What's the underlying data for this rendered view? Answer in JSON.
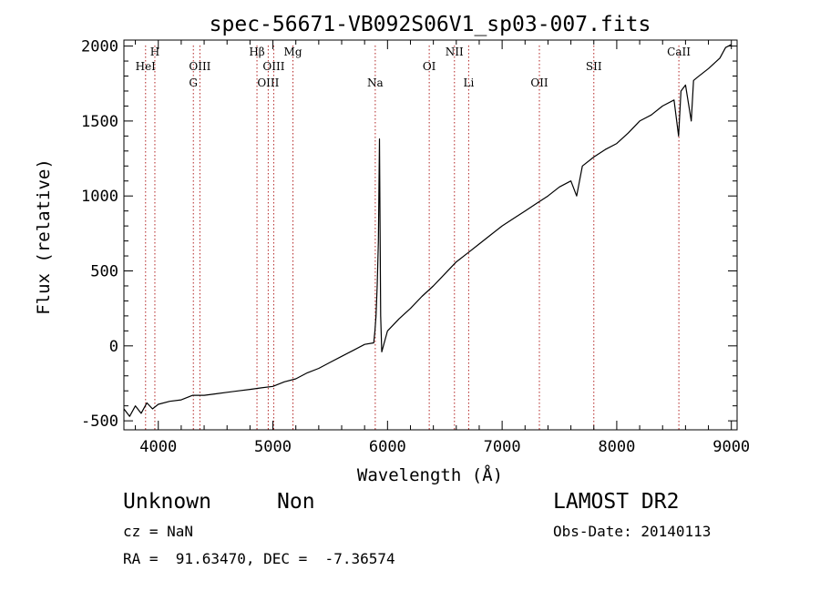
{
  "chart_data": {
    "type": "line",
    "title": "spec-56671-VB092S06V1_sp03-007.fits",
    "xlabel": "Wavelength (Å)",
    "ylabel": "Flux (relative)",
    "xlim": [
      3700,
      9050
    ],
    "ylim": [
      -560,
      2040
    ],
    "xticks": [
      4000,
      5000,
      6000,
      7000,
      8000,
      9000
    ],
    "yticks": [
      -500,
      0,
      500,
      1000,
      1500,
      2000
    ],
    "line_color": "#000000",
    "marker_color": "#b22222",
    "series": [
      {
        "x": [
          3700,
          3750,
          3800,
          3850,
          3900,
          3950,
          4000,
          4100,
          4200,
          4300,
          4400,
          4500,
          4600,
          4700,
          4800,
          4900,
          5000,
          5100,
          5200,
          5300,
          5400,
          5500,
          5600,
          5700,
          5800,
          5880,
          5890,
          5900,
          5910,
          5920,
          5930,
          5940,
          5950,
          6000,
          6100,
          6200,
          6300,
          6400,
          6500,
          6600,
          6700,
          6800,
          6900,
          7000,
          7100,
          7200,
          7300,
          7400,
          7500,
          7600,
          7650,
          7700,
          7800,
          7900,
          8000,
          8100,
          8200,
          8300,
          8400,
          8500,
          8540,
          8560,
          8600,
          8650,
          8670,
          8700,
          8800,
          8900,
          8950,
          9000
        ],
        "y": [
          -420,
          -470,
          -400,
          -450,
          -380,
          -420,
          -390,
          -370,
          -360,
          -330,
          -330,
          -320,
          -310,
          -300,
          -290,
          -280,
          -270,
          -240,
          -220,
          -180,
          -150,
          -110,
          -70,
          -30,
          10,
          20,
          100,
          200,
          400,
          700,
          1380,
          200,
          -40,
          100,
          180,
          250,
          330,
          400,
          480,
          560,
          620,
          680,
          740,
          800,
          850,
          900,
          950,
          1000,
          1060,
          1100,
          1000,
          1200,
          1260,
          1310,
          1350,
          1420,
          1500,
          1540,
          1600,
          1640,
          1400,
          1700,
          1740,
          1500,
          1770,
          1790,
          1850,
          1920,
          1990,
          2010
        ]
      }
    ],
    "lines": [
      {
        "name": "H",
        "x": 3970,
        "row": 1
      },
      {
        "name": "HeI",
        "x": 3889,
        "row": 2
      },
      {
        "name": "OIII",
        "x": 4363,
        "row": 2
      },
      {
        "name": "G",
        "x": 4306,
        "row": 3
      },
      {
        "name": "Hβ",
        "x": 4861,
        "row": 1
      },
      {
        "name": "OIII",
        "x": 5007,
        "row": 2
      },
      {
        "name": "OIII",
        "x": 4959,
        "row": 3
      },
      {
        "name": "Mg",
        "x": 5175,
        "row": 1
      },
      {
        "name": "Na",
        "x": 5893,
        "row": 3
      },
      {
        "name": "OI",
        "x": 6364,
        "row": 2
      },
      {
        "name": "NII",
        "x": 6584,
        "row": 1
      },
      {
        "name": "Li",
        "x": 6708,
        "row": 3
      },
      {
        "name": "OII",
        "x": 7325,
        "row": 3
      },
      {
        "name": "SII",
        "x": 7800,
        "row": 2
      },
      {
        "name": "CaII",
        "x": 8542,
        "row": 1
      }
    ]
  },
  "info": {
    "class": "Unknown",
    "subclass": "Non",
    "survey": "LAMOST DR2",
    "cz": "cz = NaN",
    "obs_date": "Obs-Date: 20140113",
    "radec": "RA =  91.63470, DEC =  -7.36574"
  }
}
